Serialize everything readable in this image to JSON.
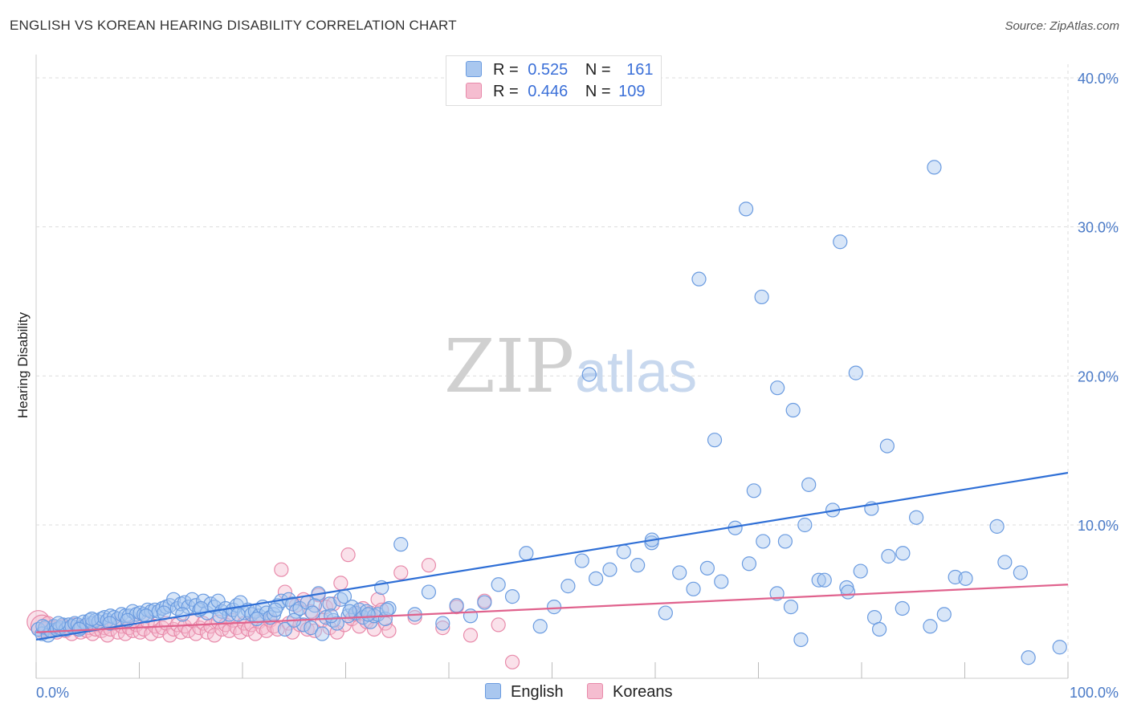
{
  "title": "ENGLISH VS KOREAN HEARING DISABILITY CORRELATION CHART",
  "source": "Source: ZipAtlas.com",
  "watermark": {
    "zip": "ZIP",
    "atlas": "atlas"
  },
  "colors": {
    "english": "#6a9be0",
    "english_fill": "#a9c7ef",
    "koreans": "#e88aaa",
    "koreans_fill": "#f5bdd0",
    "english_line": "#2f6fd6",
    "koreans_line": "#e0628d",
    "grid": "#dddddd",
    "tick_text": "#4a7ac7"
  },
  "legend": {
    "english": {
      "r_label": "R =",
      "r_value": "0.525",
      "n_label": "N =",
      "n_value": "161"
    },
    "koreans": {
      "r_label": "R =",
      "r_value": "0.446",
      "n_label": "N =",
      "n_value": "109"
    }
  },
  "bottom_legend": {
    "english": "English",
    "koreans": "Koreans"
  },
  "chart_data": {
    "type": "scatter",
    "xlabel": "",
    "ylabel": "Hearing Disability",
    "xlim": [
      0,
      100
    ],
    "ylim": [
      0,
      42
    ],
    "x_tick_labels": [
      "0.0%",
      "100.0%"
    ],
    "y_ticks": [
      10,
      20,
      30,
      40
    ],
    "y_tick_labels": [
      "10.0%",
      "20.0%",
      "30.0%",
      "40.0%"
    ],
    "grid": true,
    "legend_position": "top-center",
    "series": [
      {
        "name": "English",
        "trend": [
          [
            0,
            2.3
          ],
          [
            100,
            13.5
          ]
        ],
        "points": [
          [
            0.3,
            3.0
          ],
          [
            0.8,
            2.7
          ],
          [
            1.2,
            3.1
          ],
          [
            1.6,
            2.6
          ],
          [
            2.0,
            2.9
          ],
          [
            2.4,
            3.2
          ],
          [
            2.8,
            3.0
          ],
          [
            3.2,
            3.1
          ],
          [
            3.6,
            3.3
          ],
          [
            4.0,
            3.0
          ],
          [
            4.4,
            3.3
          ],
          [
            4.8,
            3.2
          ],
          [
            5.2,
            3.4
          ],
          [
            5.6,
            3.3
          ],
          [
            6.0,
            3.1
          ],
          [
            6.4,
            3.5
          ],
          [
            6.8,
            3.3
          ],
          [
            7.2,
            3.6
          ],
          [
            7.6,
            3.4
          ],
          [
            8.0,
            3.6
          ],
          [
            8.4,
            3.5
          ],
          [
            8.8,
            3.7
          ],
          [
            9.2,
            3.8
          ],
          [
            9.6,
            3.6
          ],
          [
            10.0,
            3.9
          ],
          [
            10.5,
            3.8
          ],
          [
            11.0,
            3.7
          ],
          [
            11.5,
            4.0
          ],
          [
            12.0,
            3.9
          ],
          [
            12.5,
            3.9
          ],
          [
            13.0,
            4.2
          ],
          [
            13.5,
            4.0
          ],
          [
            14.0,
            4.1
          ],
          [
            14.5,
            4.0
          ],
          [
            15.0,
            4.3
          ],
          [
            15.5,
            4.2
          ],
          [
            16.0,
            4.3
          ],
          [
            16.5,
            4.2
          ],
          [
            17.0,
            4.4
          ],
          [
            17.5,
            4.5
          ],
          [
            18.0,
            4.6
          ],
          [
            18.5,
            5.0
          ],
          [
            19.0,
            4.4
          ],
          [
            19.5,
            4.7
          ],
          [
            20.0,
            4.8
          ],
          [
            20.5,
            4.5
          ],
          [
            21.0,
            5.0
          ],
          [
            21.5,
            4.6
          ],
          [
            22.0,
            4.3
          ],
          [
            22.5,
            4.9
          ],
          [
            23.0,
            4.1
          ],
          [
            23.5,
            4.7
          ],
          [
            24.0,
            4.5
          ],
          [
            24.5,
            4.9
          ],
          [
            25.0,
            4.2
          ],
          [
            25.5,
            4.4
          ],
          [
            26.0,
            4.0
          ],
          [
            26.5,
            4.3
          ],
          [
            27.0,
            4.6
          ],
          [
            27.5,
            4.8
          ],
          [
            28.0,
            4.1
          ],
          [
            28.5,
            4.3
          ],
          [
            29.0,
            4.0
          ],
          [
            29.5,
            4.2
          ],
          [
            30.0,
            3.9
          ],
          [
            30.5,
            4.5
          ],
          [
            31.0,
            4.1
          ],
          [
            31.5,
            3.8
          ],
          [
            32.0,
            4.0
          ],
          [
            32.5,
            4.6
          ],
          [
            33.0,
            4.9
          ],
          [
            33.5,
            3.0
          ],
          [
            34.0,
            5.0
          ],
          [
            34.5,
            4.7
          ],
          [
            35.0,
            4.2
          ],
          [
            35.5,
            4.4
          ],
          [
            36.0,
            3.3
          ],
          [
            36.5,
            4.8
          ],
          [
            37.0,
            3.1
          ],
          [
            37.5,
            4.6
          ],
          [
            38.0,
            5.4
          ],
          [
            38.5,
            2.7
          ],
          [
            39.0,
            3.8
          ],
          [
            39.5,
            4.7
          ],
          [
            40.0,
            3.6
          ],
          [
            40.5,
            3.4
          ],
          [
            41.0,
            5.0
          ],
          [
            41.5,
            5.2
          ],
          [
            42.0,
            3.9
          ],
          [
            42.5,
            4.5
          ],
          [
            43.0,
            4.1
          ],
          [
            43.5,
            4.3
          ],
          [
            44.0,
            3.8
          ],
          [
            44.5,
            4.2
          ],
          [
            45.0,
            3.5
          ],
          [
            45.5,
            3.9
          ],
          [
            46.0,
            4.0
          ],
          [
            46.5,
            5.8
          ],
          [
            47.0,
            3.7
          ],
          [
            47.5,
            4.4
          ],
          [
            48.0,
            8.7
          ],
          [
            48.5,
            4.0
          ],
          [
            49.0,
            5.5
          ],
          [
            49.5,
            3.4
          ],
          [
            50.0,
            4.6
          ],
          [
            50.5,
            3.9
          ],
          [
            51.0,
            4.8
          ],
          [
            51.5,
            6.0
          ],
          [
            52.0,
            5.2
          ],
          [
            52.5,
            8.1
          ],
          [
            53.0,
            3.2
          ],
          [
            53.5,
            4.5
          ],
          [
            54.0,
            5.9
          ],
          [
            54.5,
            7.6
          ],
          [
            55.0,
            6.4
          ],
          [
            55.5,
            7.0
          ],
          [
            56.0,
            8.2
          ],
          [
            56.5,
            7.3
          ],
          [
            57.0,
            8.8
          ],
          [
            57.5,
            4.1
          ],
          [
            58.0,
            6.8
          ],
          [
            58.5,
            5.7
          ],
          [
            59.0,
            7.1
          ],
          [
            59.5,
            6.2
          ],
          [
            60.0,
            9.8
          ],
          [
            60.5,
            7.4
          ],
          [
            61.0,
            8.9
          ],
          [
            61.5,
            5.4
          ],
          [
            62.0,
            4.5
          ],
          [
            62.5,
            10.0
          ],
          [
            63.0,
            6.3
          ],
          [
            63.5,
            11.0
          ],
          [
            64.0,
            5.8
          ],
          [
            64.5,
            6.9
          ],
          [
            65.0,
            3.8
          ],
          [
            65.5,
            7.9
          ],
          [
            66.0,
            4.4
          ],
          [
            66.5,
            10.5
          ],
          [
            67.0,
            3.2
          ],
          [
            67.5,
            4.0
          ],
          [
            0.9,
            3.2
          ],
          [
            3.0,
            3.4
          ],
          [
            5.8,
            3.0
          ],
          [
            7.5,
            3.7
          ],
          [
            9.9,
            3.4
          ],
          [
            12.3,
            3.6
          ],
          [
            14.8,
            3.9
          ],
          [
            17.2,
            4.1
          ],
          [
            19.7,
            4.0
          ],
          [
            22.2,
            4.4
          ],
          [
            24.7,
            3.9
          ],
          [
            27.2,
            4.0
          ],
          [
            29.7,
            3.7
          ],
          [
            32.2,
            4.3
          ],
          [
            34.7,
            3.6
          ],
          [
            37.2,
            4.1
          ],
          [
            39.7,
            3.9
          ],
          [
            42.2,
            4.2
          ],
          [
            44.7,
            4.0
          ],
          [
            47.2,
            4.3
          ],
          [
            67.9,
            6.5
          ]
        ]
      },
      {
        "name": "Koreans",
        "trend": [
          [
            0,
            2.8
          ],
          [
            100,
            6.0
          ]
        ],
        "points": [
          [
            0.3,
            3.5
          ],
          [
            0.8,
            3.2
          ],
          [
            1.2,
            3.0
          ],
          [
            1.6,
            3.4
          ],
          [
            2.0,
            2.9
          ],
          [
            2.4,
            3.1
          ],
          [
            2.8,
            2.8
          ],
          [
            3.2,
            3.0
          ],
          [
            3.6,
            3.2
          ],
          [
            4.0,
            2.9
          ],
          [
            4.4,
            3.1
          ],
          [
            4.8,
            2.7
          ],
          [
            5.2,
            3.3
          ],
          [
            5.6,
            3.0
          ],
          [
            6.0,
            2.8
          ],
          [
            6.4,
            3.2
          ],
          [
            6.8,
            2.9
          ],
          [
            7.2,
            3.1
          ],
          [
            7.6,
            2.7
          ],
          [
            8.0,
            3.0
          ],
          [
            8.4,
            3.3
          ],
          [
            8.8,
            2.9
          ],
          [
            9.2,
            3.1
          ],
          [
            9.6,
            2.6
          ],
          [
            10.0,
            3.0
          ],
          [
            10.5,
            3.4
          ],
          [
            11.0,
            2.8
          ],
          [
            11.5,
            3.2
          ],
          [
            12.0,
            2.7
          ],
          [
            12.5,
            3.1
          ],
          [
            13.0,
            2.9
          ],
          [
            13.5,
            3.3
          ],
          [
            14.0,
            2.8
          ],
          [
            14.5,
            3.0
          ],
          [
            15.0,
            3.5
          ],
          [
            15.5,
            2.7
          ],
          [
            16.0,
            3.2
          ],
          [
            16.5,
            2.9
          ],
          [
            17.0,
            3.1
          ],
          [
            17.5,
            3.4
          ],
          [
            18.0,
            2.6
          ],
          [
            18.5,
            3.0
          ],
          [
            19.0,
            3.3
          ],
          [
            19.5,
            2.8
          ],
          [
            20.0,
            3.2
          ],
          [
            20.5,
            2.9
          ],
          [
            21.0,
            3.6
          ],
          [
            21.5,
            2.7
          ],
          [
            22.0,
            3.1
          ],
          [
            22.5,
            3.4
          ],
          [
            23.0,
            2.8
          ],
          [
            23.5,
            3.2
          ],
          [
            24.0,
            2.6
          ],
          [
            24.5,
            3.5
          ],
          [
            25.0,
            3.0
          ],
          [
            25.5,
            3.3
          ],
          [
            26.0,
            2.9
          ],
          [
            26.5,
            3.6
          ],
          [
            27.0,
            3.1
          ],
          [
            27.5,
            2.8
          ],
          [
            28.0,
            3.4
          ],
          [
            28.5,
            3.0
          ],
          [
            29.0,
            3.3
          ],
          [
            29.5,
            2.7
          ],
          [
            30.0,
            3.5
          ],
          [
            30.5,
            3.1
          ],
          [
            31.0,
            2.9
          ],
          [
            31.5,
            3.6
          ],
          [
            32.0,
            3.2
          ],
          [
            32.5,
            3.0
          ],
          [
            33.0,
            7.0
          ],
          [
            33.5,
            5.5
          ],
          [
            34.0,
            3.4
          ],
          [
            34.5,
            2.8
          ],
          [
            35.0,
            4.6
          ],
          [
            35.5,
            3.3
          ],
          [
            36.0,
            5.0
          ],
          [
            36.5,
            3.0
          ],
          [
            37.0,
            4.2
          ],
          [
            37.5,
            2.9
          ],
          [
            38.0,
            5.3
          ],
          [
            38.5,
            3.6
          ],
          [
            39.0,
            4.5
          ],
          [
            39.5,
            3.1
          ],
          [
            40.0,
            4.7
          ],
          [
            40.5,
            2.8
          ],
          [
            41.0,
            6.1
          ],
          [
            41.5,
            3.3
          ],
          [
            42.0,
            8.0
          ],
          [
            42.5,
            3.7
          ],
          [
            43.0,
            4.0
          ],
          [
            43.5,
            3.2
          ],
          [
            44.0,
            4.4
          ],
          [
            44.5,
            3.5
          ],
          [
            45.0,
            4.1
          ],
          [
            45.5,
            3.0
          ],
          [
            46.0,
            5.0
          ],
          [
            46.5,
            4.3
          ],
          [
            47.0,
            3.4
          ],
          [
            47.5,
            2.9
          ],
          [
            48.0,
            6.8
          ],
          [
            48.5,
            3.8
          ],
          [
            49.0,
            7.3
          ],
          [
            49.5,
            3.1
          ],
          [
            50.0,
            4.5
          ],
          [
            50.5,
            2.6
          ],
          [
            51.0,
            4.9
          ],
          [
            51.5,
            3.3
          ],
          [
            52.0,
            0.8
          ]
        ]
      }
    ]
  }
}
